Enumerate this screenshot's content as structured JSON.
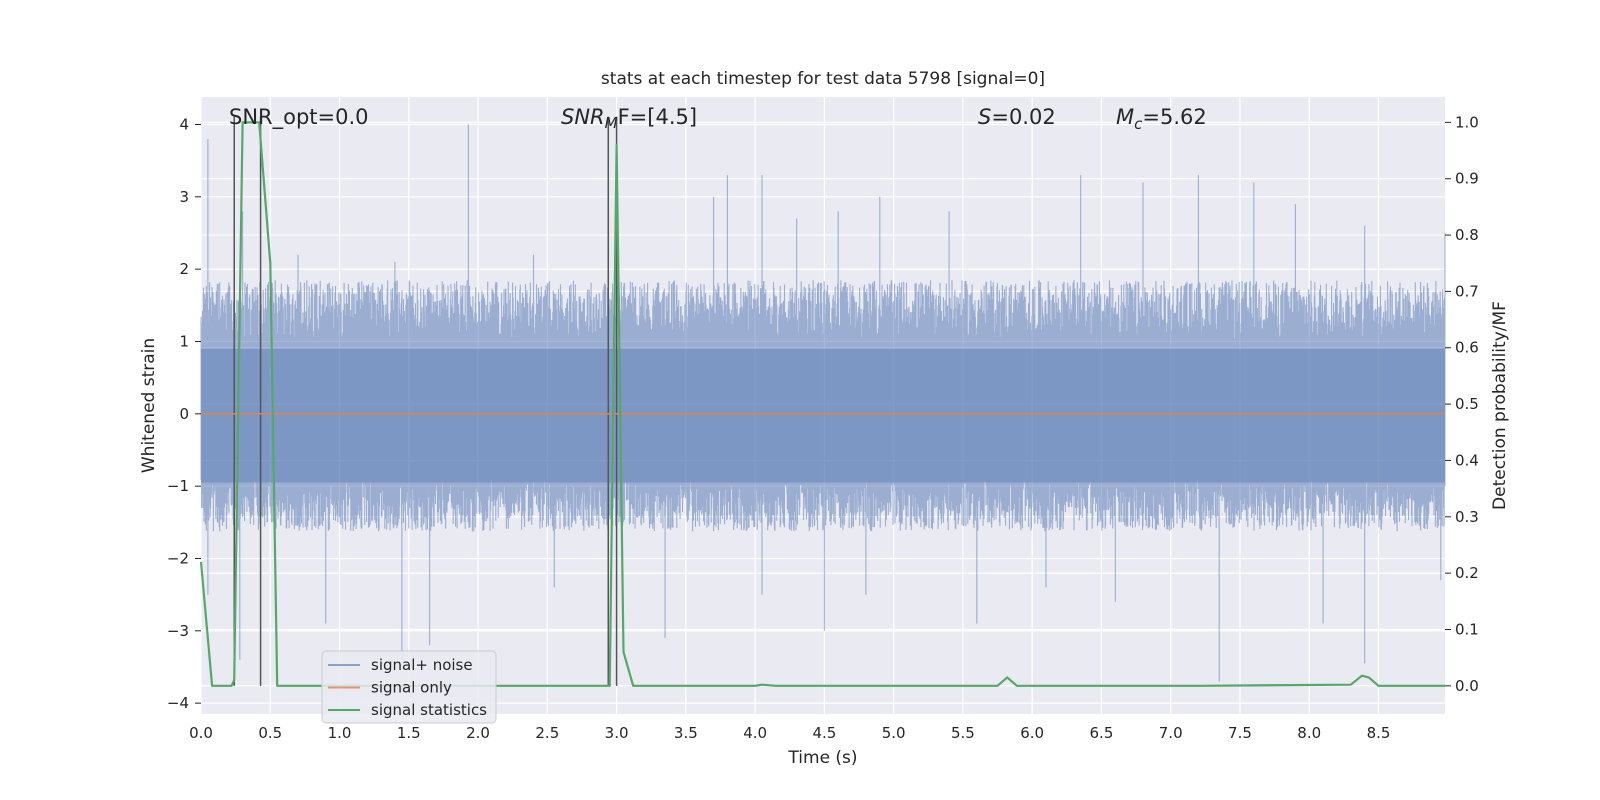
{
  "chart_data": {
    "type": "line",
    "title": "stats at each timestep for test data 5798 [signal=0]",
    "xlabel": "Time (s)",
    "ylabel_left": "Whitened strain",
    "ylabel_right": "Detection probability/MF",
    "xlim": [
      0.0,
      8.98
    ],
    "ylim_left": [
      -4.15,
      4.38
    ],
    "ylim_right": [
      -0.05,
      1.045
    ],
    "x_ticks": [
      "0.0",
      "0.5",
      "1.0",
      "1.5",
      "2.0",
      "2.5",
      "3.0",
      "3.5",
      "4.0",
      "4.5",
      "5.0",
      "5.5",
      "6.0",
      "6.5",
      "7.0",
      "7.5",
      "8.0",
      "8.5"
    ],
    "y_ticks_left": [
      "4",
      "3",
      "2",
      "1",
      "0",
      "−1",
      "−2",
      "−3",
      "−4"
    ],
    "y_ticks_right": [
      "1.0",
      "0.9",
      "0.8",
      "0.7",
      "0.6",
      "0.5",
      "0.4",
      "0.3",
      "0.2",
      "0.1",
      "0.0"
    ],
    "grid": true,
    "legend_position": "lower-left",
    "annotations": {
      "snr_opt": "SNR_opt=0.0",
      "snr_mf_main": "SNR",
      "snr_mf_sub": "M",
      "snr_mf_rest": "F=[4.5]",
      "s_symbol": "S",
      "s_rest": "=0.02",
      "mc_main": "M",
      "mc_sub": "c",
      "mc_rest": "=5.62"
    },
    "colors": {
      "noise": "#4c72b0",
      "signal": "#dd8452",
      "stats": "#55a868",
      "background": "#eaeaf2",
      "grid": "#ffffff",
      "marker": "#555555"
    },
    "series": [
      {
        "name": "signal+ noise",
        "kind": "noise-band",
        "typical_range": [
          -1.45,
          1.65
        ],
        "peaks_up": [
          [
            0.05,
            3.8
          ],
          [
            0.3,
            2.8
          ],
          [
            0.7,
            2.2
          ],
          [
            1.4,
            2.1
          ],
          [
            1.93,
            4.0
          ],
          [
            2.4,
            2.2
          ],
          [
            3.0,
            2.4
          ],
          [
            3.7,
            3.0
          ],
          [
            3.8,
            3.3
          ],
          [
            4.05,
            3.3
          ],
          [
            4.3,
            2.7
          ],
          [
            4.6,
            2.8
          ],
          [
            4.9,
            3.0
          ],
          [
            5.4,
            2.8
          ],
          [
            6.35,
            3.3
          ],
          [
            6.8,
            3.2
          ],
          [
            7.2,
            3.3
          ],
          [
            7.6,
            3.2
          ],
          [
            7.9,
            2.9
          ],
          [
            8.4,
            2.6
          ],
          [
            8.98,
            2.5
          ]
        ],
        "peaks_down": [
          [
            0.05,
            -2.5
          ],
          [
            0.28,
            -3.4
          ],
          [
            0.9,
            -2.9
          ],
          [
            1.45,
            -3.4
          ],
          [
            1.65,
            -3.2
          ],
          [
            2.55,
            -2.4
          ],
          [
            3.35,
            -3.1
          ],
          [
            4.05,
            -2.5
          ],
          [
            4.5,
            -3.0
          ],
          [
            4.8,
            -2.5
          ],
          [
            5.6,
            -2.9
          ],
          [
            6.1,
            -2.4
          ],
          [
            6.6,
            -2.6
          ],
          [
            7.35,
            -3.7
          ],
          [
            8.1,
            -2.9
          ],
          [
            8.4,
            -3.45
          ],
          [
            8.95,
            -2.3
          ]
        ]
      },
      {
        "name": "signal only",
        "x": [
          0.0,
          8.98
        ],
        "y": [
          0.0,
          0.0
        ]
      },
      {
        "name": "signal statistics",
        "x": [
          0.0,
          0.08,
          0.22,
          0.24,
          0.3,
          0.42,
          0.5,
          0.55,
          2.9,
          2.95,
          3.0,
          3.05,
          3.12,
          3.2,
          4.0,
          4.05,
          4.15,
          5.75,
          5.82,
          5.89,
          7.2,
          8.3,
          8.38,
          8.43,
          8.5,
          8.98
        ],
        "y": [
          0.22,
          0.0,
          0.0,
          0.01,
          1.0,
          1.0,
          0.75,
          0.0,
          0.0,
          0.0,
          0.96,
          0.06,
          0.0,
          0.0,
          0.0,
          0.002,
          0.0,
          0.0,
          0.015,
          0.0,
          0.0,
          0.002,
          0.018,
          0.015,
          0.0,
          0.0
        ]
      }
    ],
    "marker_lines_x": [
      0.24,
      0.43,
      2.94,
      3.0
    ]
  }
}
